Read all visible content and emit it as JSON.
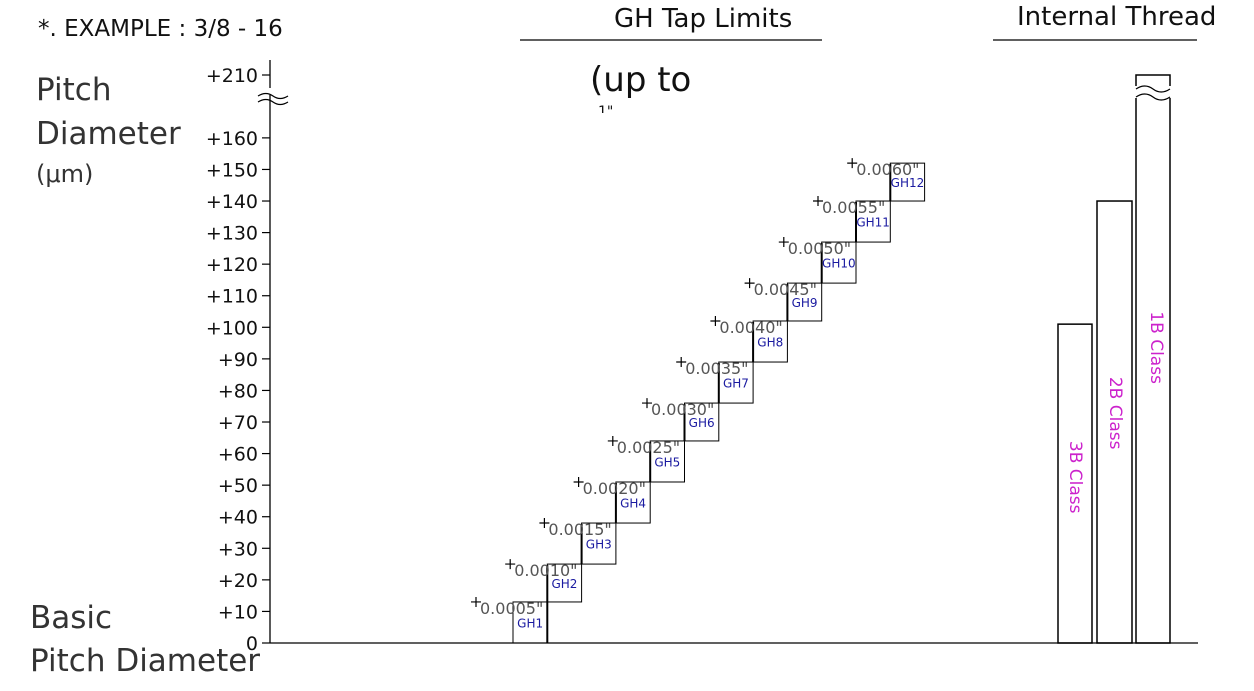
{
  "header": {
    "example": "*. EXAMPLE : 3/8 - 16",
    "tap_limits_title": "GH Tap Limits",
    "internal_thread_title": "Internal Thread",
    "up_to_note": "(up to",
    "up_to_cut_fragment": "1\""
  },
  "axis": {
    "ylabel_line1": "Pitch",
    "ylabel_line2": "Diameter",
    "ylabel_line3": "(μm)",
    "base_label_line1": "Basic",
    "base_label_line2": "Pitch Diameter"
  },
  "chart_data": {
    "type": "bar",
    "ylim": [
      0,
      210
    ],
    "y_axis_break": [
      160,
      210
    ],
    "yticks": [
      0,
      10,
      20,
      30,
      40,
      50,
      60,
      70,
      80,
      90,
      100,
      110,
      120,
      130,
      140,
      150,
      160,
      210
    ],
    "ytick_labels": [
      "0",
      "+10",
      "+20",
      "+30",
      "+40",
      "+50",
      "+60",
      "+70",
      "+80",
      "+90",
      "+100",
      "+110",
      "+120",
      "+130",
      "+140",
      "+150",
      "+160",
      "+210"
    ],
    "tap_limits": [
      {
        "label": "GH1",
        "low": 0,
        "high": 13
      },
      {
        "label": "GH2",
        "low": 13,
        "high": 25
      },
      {
        "label": "GH3",
        "low": 25,
        "high": 38
      },
      {
        "label": "GH4",
        "low": 38,
        "high": 51
      },
      {
        "label": "GH5",
        "low": 51,
        "high": 64
      },
      {
        "label": "GH6",
        "low": 64,
        "high": 76
      },
      {
        "label": "GH7",
        "low": 76,
        "high": 89
      },
      {
        "label": "GH8",
        "low": 89,
        "high": 102
      },
      {
        "label": "GH9",
        "low": 102,
        "high": 114
      },
      {
        "label": "GH10",
        "low": 114,
        "high": 127
      },
      {
        "label": "GH11",
        "low": 127,
        "high": 140
      },
      {
        "label": "GH12",
        "low": 140,
        "high": 152
      }
    ],
    "inch_marks": [
      {
        "label": "0.0005\"",
        "value": 13
      },
      {
        "label": "0.0010\"",
        "value": 25
      },
      {
        "label": "0.0015\"",
        "value": 38
      },
      {
        "label": "0.0020\"",
        "value": 51
      },
      {
        "label": "0.0025\"",
        "value": 64
      },
      {
        "label": "0.0030\"",
        "value": 76
      },
      {
        "label": "0.0035\"",
        "value": 89
      },
      {
        "label": "0.0040\"",
        "value": 102
      },
      {
        "label": "0.0045\"",
        "value": 114
      },
      {
        "label": "0.0050\"",
        "value": 127
      },
      {
        "label": "0.0055\"",
        "value": 140
      },
      {
        "label": "0.0060\"",
        "value": 152
      }
    ],
    "internal_thread_classes": [
      {
        "label": "3B Class",
        "value": 101
      },
      {
        "label": "2B Class",
        "value": 140
      },
      {
        "label": "1B Class",
        "value": 210
      }
    ]
  },
  "colors": {
    "axis": "#000000",
    "tick_text": "#111111",
    "gh_label": "#1a1aa0",
    "inch_label": "#555555",
    "class_label": "#cc22cc"
  }
}
